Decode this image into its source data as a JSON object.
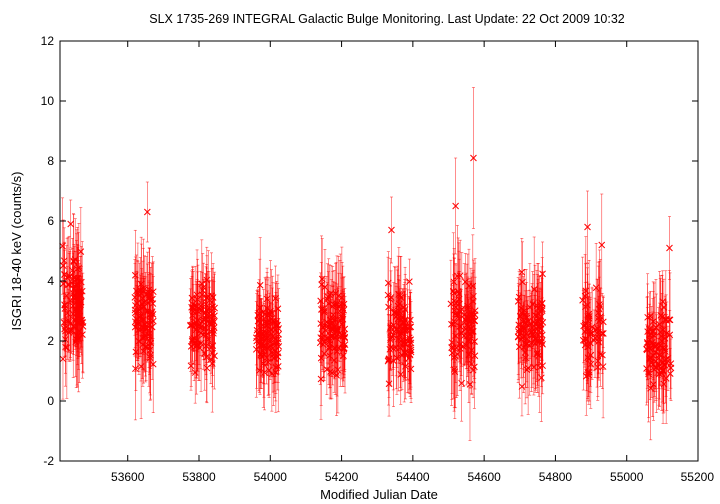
{
  "chart_data": {
    "type": "scatter",
    "title": "SLX 1735-269   INTEGRAL Galactic Bulge Monitoring.  Last Update: 22 Oct 2009 10:32",
    "xlabel": "Modified Julian Date",
    "ylabel": "ISGRI 18-40 keV (counts/s)",
    "xlim": [
      53410,
      55200
    ],
    "ylim": [
      -2,
      12
    ],
    "xticks": [
      53600,
      53800,
      54000,
      54200,
      54400,
      54600,
      54800,
      55000,
      55200
    ],
    "yticks": [
      -2,
      0,
      2,
      4,
      6,
      8,
      10,
      12
    ],
    "grid": false,
    "legend": "none",
    "marker": "x",
    "color": "#ff0000",
    "error_bars": true,
    "seasons": [
      {
        "mjd_start": 53415,
        "mjd_end": 53475,
        "mean": 3.1,
        "spread": 1.1,
        "count": 95,
        "err": 1.35
      },
      {
        "mjd_start": 53620,
        "mjd_end": 53672,
        "mean": 2.6,
        "spread": 1.0,
        "count": 85,
        "err": 1.35
      },
      {
        "mjd_start": 53775,
        "mjd_end": 53845,
        "mean": 2.7,
        "spread": 1.0,
        "count": 95,
        "err": 1.3
      },
      {
        "mjd_start": 53960,
        "mjd_end": 54025,
        "mean": 2.2,
        "spread": 1.0,
        "count": 95,
        "err": 1.3
      },
      {
        "mjd_start": 54140,
        "mjd_end": 54210,
        "mean": 2.3,
        "spread": 1.0,
        "count": 100,
        "err": 1.3
      },
      {
        "mjd_start": 54330,
        "mjd_end": 54395,
        "mean": 2.3,
        "spread": 1.0,
        "count": 90,
        "err": 1.35
      },
      {
        "mjd_start": 54505,
        "mjd_end": 54575,
        "mean": 2.7,
        "spread": 1.2,
        "count": 90,
        "err": 1.5
      },
      {
        "mjd_start": 54695,
        "mjd_end": 54765,
        "mean": 2.4,
        "spread": 1.0,
        "count": 95,
        "err": 1.35
      },
      {
        "mjd_start": 54875,
        "mjd_end": 54935,
        "mean": 2.4,
        "spread": 1.0,
        "count": 60,
        "err": 1.5
      },
      {
        "mjd_start": 55055,
        "mjd_end": 55125,
        "mean": 1.8,
        "spread": 0.9,
        "count": 80,
        "err": 1.4
      }
    ],
    "notable_points": [
      {
        "x": 54570,
        "y": 8.1,
        "err": 2.35
      },
      {
        "x": 54520,
        "y": 6.5,
        "err": 1.6
      },
      {
        "x": 53655,
        "y": 6.3,
        "err": 1.0
      },
      {
        "x": 54890,
        "y": 5.8,
        "err": 1.2
      },
      {
        "x": 54340,
        "y": 5.7,
        "err": 1.1
      },
      {
        "x": 53440,
        "y": 5.9,
        "err": 0.8
      },
      {
        "x": 55120,
        "y": 5.1,
        "err": 1.05
      },
      {
        "x": 54930,
        "y": 5.2,
        "err": 1.7
      }
    ]
  }
}
